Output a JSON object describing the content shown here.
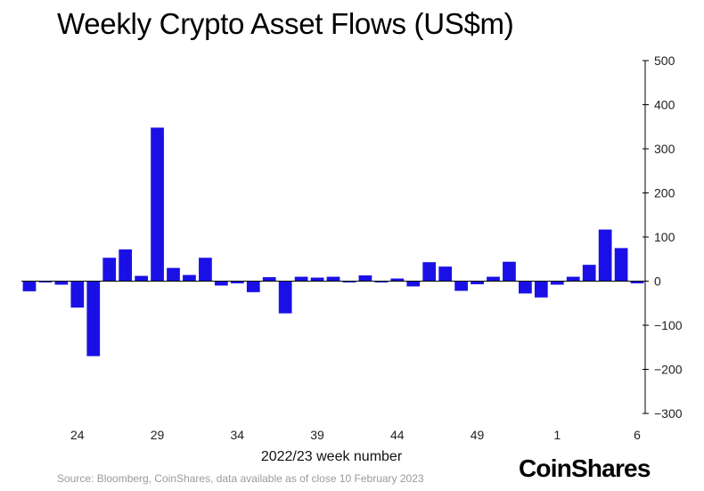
{
  "chart_data": {
    "type": "bar",
    "title": "Weekly Crypto Asset Flows (US$m)",
    "xlabel": "2022/23 week number",
    "ylabel": "",
    "ylim": [
      -300,
      500
    ],
    "yticks": [
      500,
      400,
      300,
      200,
      100,
      0,
      -100,
      -200,
      -300
    ],
    "y_axis_side": "right",
    "grid": false,
    "bar_color": "#1a10e6",
    "x_tick_labels": [
      {
        "index": 3,
        "label": "24"
      },
      {
        "index": 8,
        "label": "29"
      },
      {
        "index": 13,
        "label": "34"
      },
      {
        "index": 18,
        "label": "39"
      },
      {
        "index": 23,
        "label": "44"
      },
      {
        "index": 28,
        "label": "49"
      },
      {
        "index": 33,
        "label": "1"
      },
      {
        "index": 38,
        "label": "6"
      }
    ],
    "values": [
      -23,
      -3,
      -8,
      -60,
      -170,
      53,
      72,
      12,
      348,
      30,
      14,
      53,
      -10,
      -5,
      -25,
      9,
      -73,
      10,
      8,
      10,
      -3,
      13,
      -3,
      6,
      -12,
      43,
      33,
      -22,
      -7,
      10,
      44,
      -28,
      -37,
      -8,
      10,
      37,
      117,
      75,
      -5
    ]
  },
  "source": "Source: Bloomberg, CoinShares, data available as of close 10 February 2023",
  "brand": {
    "logo_text": "CoinShares"
  }
}
